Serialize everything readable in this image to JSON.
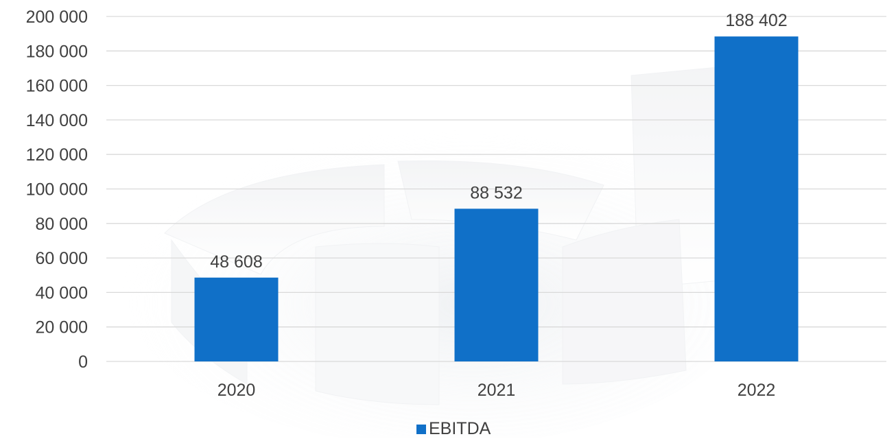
{
  "chart_data": {
    "type": "bar",
    "title": "",
    "xlabel": "",
    "ylabel": "",
    "categories": [
      "2020",
      "2021",
      "2022"
    ],
    "series": [
      {
        "name": "EBITDA",
        "values": [
          48608,
          88532,
          188402
        ],
        "value_labels": [
          "48 608",
          "88 532",
          "188 402"
        ],
        "color": "#1070c8"
      }
    ],
    "ylim": [
      0,
      200000
    ],
    "yticks": [
      0,
      20000,
      40000,
      60000,
      80000,
      100000,
      120000,
      140000,
      160000,
      180000,
      200000
    ],
    "ytick_labels": [
      "0",
      "20 000",
      "40 000",
      "60 000",
      "80 000",
      "100 000",
      "120 000",
      "140 000",
      "160 000",
      "180 000",
      "200 000"
    ],
    "grid": true,
    "legend_position": "bottom",
    "gridline_color": "#d9d9d9",
    "text_color": "#404040",
    "background_decoration": "faded-3d-pie-graphic"
  }
}
